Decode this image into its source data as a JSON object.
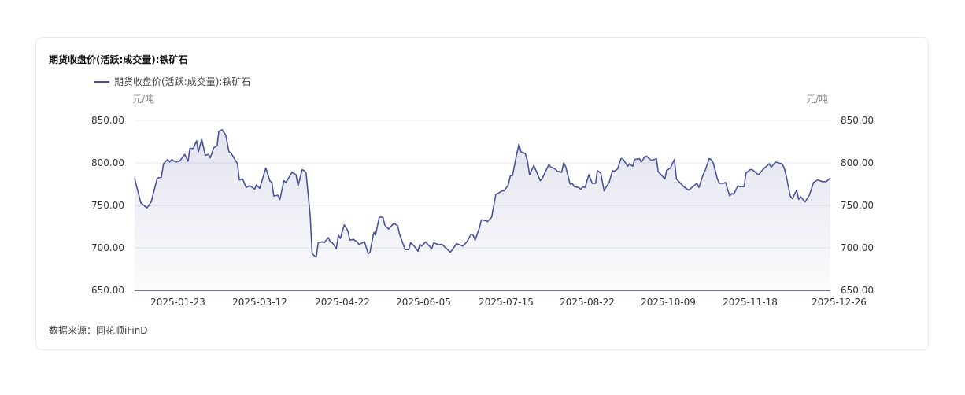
{
  "chart_data": {
    "type": "area",
    "title": "期货收盘价(活跃:成交量):铁矿石",
    "legend": [
      "期货收盘价(活跃:成交量):铁矿石"
    ],
    "legend_position": "top-left",
    "ylabel_left": "元/吨",
    "ylabel_right": "元/吨",
    "ylim": [
      650,
      850
    ],
    "y_ticks": [
      "650.00",
      "700.00",
      "750.00",
      "800.00",
      "850.00"
    ],
    "x_ticks": [
      "2025-01-23",
      "2025-03-12",
      "2025-04-22",
      "2025-06-05",
      "2025-07-15",
      "2025-08-22",
      "2025-10-09",
      "2025-11-18",
      "2025-12-26"
    ],
    "grid": true,
    "line_color": "#4a5399",
    "series": [
      {
        "name": "期货收盘价(活跃:成交量):铁矿石",
        "points": [
          [
            "2025-01-02",
            782
          ],
          [
            "2025-01-05",
            753
          ],
          [
            "2025-01-08",
            747
          ],
          [
            "2025-01-10",
            754
          ],
          [
            "2025-01-13",
            782
          ],
          [
            "2025-01-15",
            783
          ],
          [
            "2025-01-16",
            799
          ],
          [
            "2025-01-18",
            804
          ],
          [
            "2025-01-19",
            801
          ],
          [
            "2025-01-20",
            804
          ],
          [
            "2025-01-22",
            801
          ],
          [
            "2025-01-24",
            802
          ],
          [
            "2025-01-27",
            810
          ],
          [
            "2025-01-29",
            802
          ],
          [
            "2025-01-30",
            817
          ],
          [
            "2025-02-01",
            817
          ],
          [
            "2025-02-03",
            826
          ],
          [
            "2025-02-04",
            813
          ],
          [
            "2025-02-06",
            828
          ],
          [
            "2025-02-08",
            809
          ],
          [
            "2025-02-10",
            810
          ],
          [
            "2025-02-11",
            806
          ],
          [
            "2025-02-13",
            818
          ],
          [
            "2025-02-15",
            820
          ],
          [
            "2025-02-16",
            837
          ],
          [
            "2025-02-18",
            839
          ],
          [
            "2025-02-20",
            833
          ],
          [
            "2025-02-22",
            813
          ],
          [
            "2025-02-23",
            812
          ],
          [
            "2025-02-27",
            799
          ],
          [
            "2025-02-28",
            780
          ],
          [
            "2025-03-02",
            781
          ],
          [
            "2025-03-04",
            771
          ],
          [
            "2025-03-06",
            773
          ],
          [
            "2025-03-07",
            772
          ],
          [
            "2025-03-09",
            769
          ],
          [
            "2025-03-10",
            774
          ],
          [
            "2025-03-12",
            770
          ],
          [
            "2025-03-15",
            794
          ],
          [
            "2025-03-17",
            779
          ],
          [
            "2025-03-18",
            777
          ],
          [
            "2025-03-19",
            761
          ],
          [
            "2025-03-21",
            762
          ],
          [
            "2025-03-22",
            757
          ],
          [
            "2025-03-24",
            779
          ],
          [
            "2025-03-25",
            777
          ],
          [
            "2025-03-26",
            781
          ],
          [
            "2025-03-28",
            789
          ],
          [
            "2025-03-30",
            786
          ],
          [
            "2025-03-31",
            773
          ],
          [
            "2025-04-02",
            792
          ],
          [
            "2025-04-03",
            791
          ],
          [
            "2025-04-04",
            788
          ],
          [
            "2025-04-06",
            739
          ],
          [
            "2025-04-07",
            693
          ],
          [
            "2025-04-09",
            689
          ],
          [
            "2025-04-10",
            706
          ],
          [
            "2025-04-12",
            707
          ],
          [
            "2025-04-13",
            706
          ],
          [
            "2025-04-15",
            712
          ],
          [
            "2025-04-16",
            707
          ],
          [
            "2025-04-17",
            706
          ],
          [
            "2025-04-19",
            699
          ],
          [
            "2025-04-20",
            715
          ],
          [
            "2025-04-21",
            711
          ],
          [
            "2025-04-23",
            727
          ],
          [
            "2025-04-25",
            720
          ],
          [
            "2025-04-26",
            709
          ],
          [
            "2025-04-28",
            710
          ],
          [
            "2025-04-30",
            707
          ],
          [
            "2025-05-01",
            704
          ],
          [
            "2025-05-04",
            707
          ],
          [
            "2025-05-06",
            693
          ],
          [
            "2025-05-07",
            695
          ],
          [
            "2025-05-09",
            718
          ],
          [
            "2025-05-10",
            715
          ],
          [
            "2025-05-12",
            736
          ],
          [
            "2025-05-14",
            736
          ],
          [
            "2025-05-15",
            727
          ],
          [
            "2025-05-17",
            722
          ],
          [
            "2025-05-20",
            729
          ],
          [
            "2025-05-22",
            726
          ],
          [
            "2025-05-23",
            716
          ],
          [
            "2025-05-26",
            698
          ],
          [
            "2025-05-28",
            698
          ],
          [
            "2025-05-29",
            706
          ],
          [
            "2025-05-31",
            702
          ],
          [
            "2025-06-02",
            696
          ],
          [
            "2025-06-03",
            704
          ],
          [
            "2025-06-04",
            702
          ],
          [
            "2025-06-06",
            707
          ],
          [
            "2025-06-09",
            699
          ],
          [
            "2025-06-10",
            706
          ],
          [
            "2025-06-12",
            704
          ],
          [
            "2025-06-14",
            704
          ],
          [
            "2025-06-18",
            695
          ],
          [
            "2025-06-19",
            698
          ],
          [
            "2025-06-21",
            705
          ],
          [
            "2025-06-23",
            703
          ],
          [
            "2025-06-24",
            702
          ],
          [
            "2025-06-26",
            707
          ],
          [
            "2025-06-28",
            716
          ],
          [
            "2025-06-29",
            715
          ],
          [
            "2025-06-30",
            709
          ],
          [
            "2025-07-02",
            723
          ],
          [
            "2025-07-03",
            733
          ],
          [
            "2025-07-05",
            732
          ],
          [
            "2025-07-06",
            731
          ],
          [
            "2025-07-08",
            736
          ],
          [
            "2025-07-10",
            763
          ],
          [
            "2025-07-11",
            764
          ],
          [
            "2025-07-13",
            767
          ],
          [
            "2025-07-14",
            767
          ],
          [
            "2025-07-16",
            774
          ],
          [
            "2025-07-17",
            785
          ],
          [
            "2025-07-18",
            785
          ],
          [
            "2025-07-20",
            811
          ],
          [
            "2025-07-21",
            822
          ],
          [
            "2025-07-22",
            813
          ],
          [
            "2025-07-24",
            811
          ],
          [
            "2025-07-25",
            802
          ],
          [
            "2025-07-26",
            786
          ],
          [
            "2025-07-28",
            797
          ],
          [
            "2025-07-31",
            779
          ],
          [
            "2025-08-01",
            782
          ],
          [
            "2025-08-04",
            798
          ],
          [
            "2025-08-05",
            795
          ],
          [
            "2025-08-07",
            793
          ],
          [
            "2025-08-08",
            790
          ],
          [
            "2025-08-10",
            789
          ],
          [
            "2025-08-11",
            800
          ],
          [
            "2025-08-12",
            795
          ],
          [
            "2025-08-14",
            775
          ],
          [
            "2025-08-15",
            776
          ],
          [
            "2025-08-16",
            772
          ],
          [
            "2025-08-18",
            771
          ],
          [
            "2025-08-19",
            769
          ],
          [
            "2025-08-20",
            772
          ],
          [
            "2025-08-21",
            771
          ],
          [
            "2025-08-23",
            786
          ],
          [
            "2025-08-25",
            776
          ],
          [
            "2025-08-27",
            776
          ],
          [
            "2025-08-28",
            791
          ],
          [
            "2025-08-30",
            788
          ],
          [
            "2025-09-01",
            767
          ],
          [
            "2025-09-02",
            771
          ],
          [
            "2025-09-04",
            777
          ],
          [
            "2025-09-06",
            791
          ],
          [
            "2025-09-07",
            790
          ],
          [
            "2025-09-09",
            793
          ],
          [
            "2025-09-11",
            805
          ],
          [
            "2025-09-12",
            805
          ],
          [
            "2025-09-15",
            796
          ],
          [
            "2025-09-16",
            799
          ],
          [
            "2025-09-18",
            796
          ],
          [
            "2025-09-19",
            804
          ],
          [
            "2025-09-22",
            805
          ],
          [
            "2025-09-23",
            801
          ],
          [
            "2025-09-25",
            807
          ],
          [
            "2025-09-26",
            808
          ],
          [
            "2025-09-29",
            803
          ],
          [
            "2025-10-02",
            805
          ],
          [
            "2025-10-03",
            790
          ],
          [
            "2025-10-07",
            781
          ],
          [
            "2025-10-08",
            791
          ],
          [
            "2025-10-10",
            794
          ],
          [
            "2025-10-12",
            804
          ],
          [
            "2025-10-13",
            781
          ],
          [
            "2025-10-15",
            776
          ],
          [
            "2025-10-17",
            771
          ],
          [
            "2025-10-19",
            768
          ],
          [
            "2025-10-20",
            770
          ],
          [
            "2025-10-23",
            776
          ],
          [
            "2025-10-24",
            771
          ],
          [
            "2025-10-26",
            786
          ],
          [
            "2025-10-27",
            791
          ],
          [
            "2025-10-29",
            805
          ],
          [
            "2025-10-30",
            804
          ],
          [
            "2025-10-31",
            800
          ],
          [
            "2025-11-02",
            781
          ],
          [
            "2025-11-03",
            776
          ],
          [
            "2025-11-05",
            776
          ],
          [
            "2025-11-06",
            777
          ],
          [
            "2025-11-08",
            761
          ],
          [
            "2025-11-09",
            764
          ],
          [
            "2025-11-10",
            763
          ],
          [
            "2025-11-12",
            773
          ],
          [
            "2025-11-13",
            772
          ],
          [
            "2025-11-15",
            772
          ],
          [
            "2025-11-16",
            788
          ],
          [
            "2025-11-18",
            792
          ],
          [
            "2025-11-19",
            792
          ],
          [
            "2025-11-22",
            786
          ],
          [
            "2025-11-24",
            792
          ],
          [
            "2025-11-27",
            799
          ],
          [
            "2025-11-28",
            795
          ],
          [
            "2025-11-30",
            801
          ],
          [
            "2025-12-03",
            799
          ],
          [
            "2025-12-04",
            795
          ],
          [
            "2025-12-05",
            786
          ],
          [
            "2025-12-07",
            761
          ],
          [
            "2025-12-08",
            758
          ],
          [
            "2025-12-10",
            768
          ],
          [
            "2025-12-11",
            757
          ],
          [
            "2025-12-12",
            760
          ],
          [
            "2025-12-14",
            754
          ],
          [
            "2025-12-16",
            762
          ],
          [
            "2025-12-17",
            769
          ],
          [
            "2025-12-18",
            777
          ],
          [
            "2025-12-20",
            780
          ],
          [
            "2025-12-22",
            778
          ],
          [
            "2025-12-24",
            778
          ],
          [
            "2025-12-26",
            782
          ]
        ]
      }
    ]
  },
  "footer": {
    "source": "数据来源：同花顺iFinD"
  }
}
